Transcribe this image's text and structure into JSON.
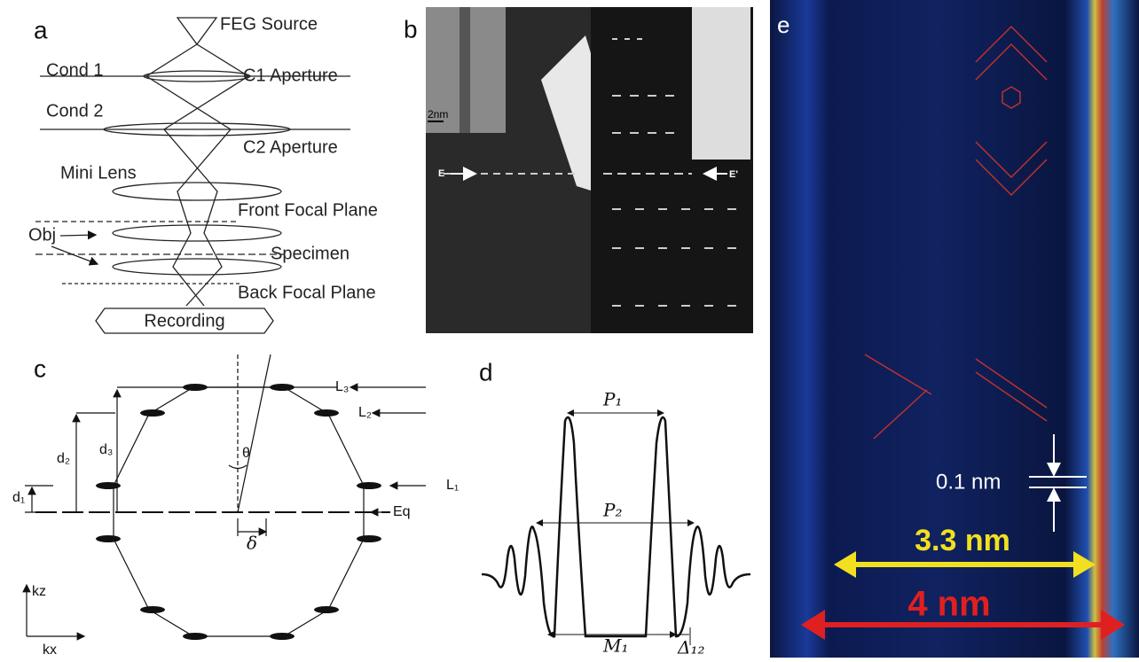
{
  "panel_a": {
    "label": "a",
    "feg_source": "FEG Source",
    "cond1": "Cond 1",
    "c1_aperture": "C1 Aperture",
    "cond2": "Cond 2",
    "c2_aperture": "C2 Aperture",
    "mini_lens": "Mini Lens",
    "front_focal_plane": "Front Focal Plane",
    "obj": "Obj",
    "specimen": "Specimen",
    "back_focal_plane": "Back Focal Plane",
    "recording": "Recording"
  },
  "panel_b": {
    "label": "b",
    "scale": "2nm",
    "e_left": "E",
    "e_right": "E'"
  },
  "panel_c": {
    "label": "c",
    "l3": "L₃",
    "l2": "L₂",
    "l1": "L₁",
    "eq": "Eq",
    "d2": "d₂",
    "d3": "d₃",
    "d1": "d₁",
    "theta": "θ",
    "delta": "δ",
    "kz": "kz",
    "kx": "kx"
  },
  "panel_d": {
    "label": "d",
    "p1": "P₁",
    "p2": "P₂",
    "m1": "M₁",
    "delta12": "Δ₁₂"
  },
  "panel_e": {
    "label": "e",
    "spacing": "0.1 nm",
    "inner": "3.3 nm",
    "outer": "4 nm"
  }
}
